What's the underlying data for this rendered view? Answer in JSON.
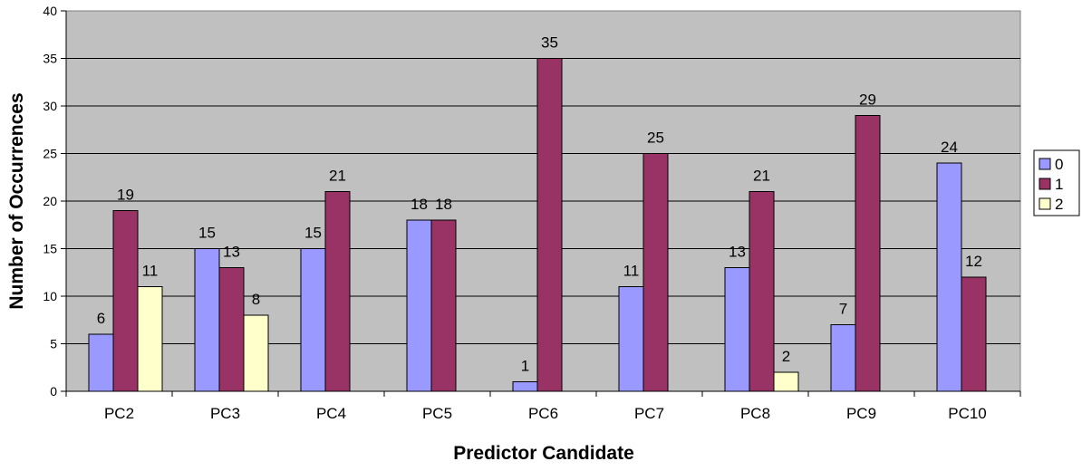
{
  "chart_data": {
    "type": "bar",
    "title": "",
    "xlabel": "Predictor Candidate",
    "ylabel": "Number of Occurrences",
    "categories": [
      "PC2",
      "PC3",
      "PC4",
      "PC5",
      "PC6",
      "PC7",
      "PC8",
      "PC9",
      "PC10"
    ],
    "series": [
      {
        "name": "0",
        "color": "#9999FF",
        "values": [
          6,
          15,
          15,
          18,
          1,
          11,
          13,
          7,
          24
        ]
      },
      {
        "name": "1",
        "color": "#993366",
        "values": [
          19,
          13,
          21,
          18,
          35,
          25,
          21,
          29,
          12
        ]
      },
      {
        "name": "2",
        "color": "#FFFFCC",
        "values": [
          11,
          8,
          null,
          null,
          null,
          null,
          2,
          null,
          null
        ]
      }
    ],
    "ylim": [
      0,
      40
    ],
    "yticks": [
      0,
      5,
      10,
      15,
      20,
      25,
      30,
      35,
      40
    ],
    "grid": true,
    "plot_background": "#C0C0C0",
    "legend_position": "right"
  }
}
